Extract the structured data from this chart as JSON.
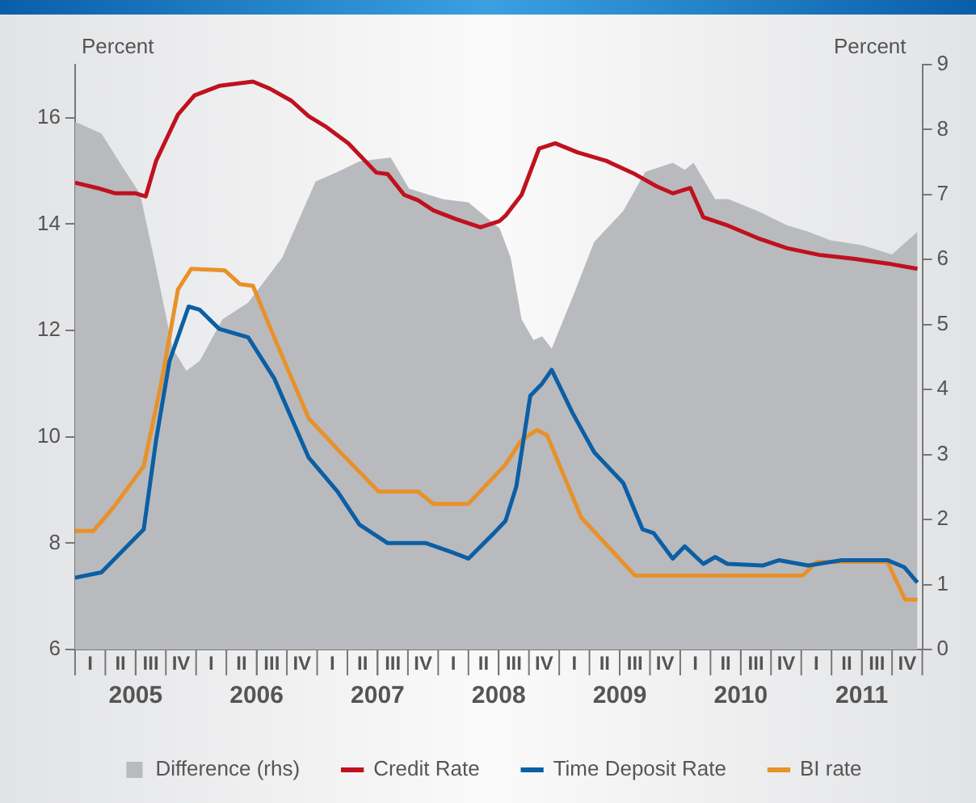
{
  "chart_data": {
    "type": "line",
    "ylabel": "Percent",
    "y2label": "Percent",
    "xlim": [
      "2005-01-01",
      "2012-01-01"
    ],
    "ylim": [
      6,
      17
    ],
    "yticks": [
      6,
      8,
      10,
      12,
      14,
      16
    ],
    "y2lim": [
      0,
      9
    ],
    "y2ticks": [
      0,
      1,
      2,
      3,
      4,
      5,
      6,
      7,
      8,
      9
    ],
    "xticks": [
      {
        "value": "2005-07-01",
        "label": "2005"
      },
      {
        "value": "2006-07-01",
        "label": "2006"
      },
      {
        "value": "2007-07-01",
        "label": "2007"
      },
      {
        "value": "2008-07-01",
        "label": "2008"
      },
      {
        "value": "2009-07-01",
        "label": "2009"
      },
      {
        "value": "2010-07-01",
        "label": "2010"
      },
      {
        "value": "2011-07-01",
        "label": "2011"
      }
    ],
    "annotations": [
      "I",
      "II",
      "III",
      "IV",
      "I",
      "II",
      "III",
      "IV",
      "I",
      "II",
      "III",
      "IV",
      "I",
      "II",
      "III",
      "IV",
      "I",
      "II",
      "III",
      "IV",
      "I",
      "II",
      "III",
      "IV",
      "I",
      "II",
      "III",
      "IV"
    ],
    "grid": false,
    "legend": "bottom",
    "series": [
      {
        "name": "Difference (rhs)",
        "type": "area",
        "axis": "y2",
        "color": "#b9babd",
        "x": [
          "2005-01-01",
          "2005-03-20",
          "2005-05-25",
          "2005-07-15",
          "2005-09-02",
          "2005-10-22",
          "2005-12-02",
          "2006-01-12",
          "2006-03-20",
          "2006-06-06",
          "2006-09-17",
          "2006-12-27",
          "2007-03-02",
          "2007-05-07",
          "2007-08-10",
          "2007-10-05",
          "2008-01-15",
          "2008-04-01",
          "2008-07-04",
          "2008-08-07",
          "2008-09-09",
          "2008-10-15",
          "2008-11-10",
          "2008-12-09",
          "2009-02-10",
          "2009-04-15",
          "2009-07-12",
          "2009-09-17",
          "2009-12-09",
          "2010-01-15",
          "2010-02-10",
          "2010-04-15",
          "2010-05-25",
          "2010-08-21",
          "2010-11-18",
          "2011-01-22",
          "2011-03-27",
          "2011-07-04",
          "2011-10-01",
          "2011-12-17"
        ],
        "values": [
          8.12,
          7.94,
          7.41,
          7.01,
          5.87,
          4.63,
          4.29,
          4.44,
          5.08,
          5.34,
          6.03,
          7.2,
          7.35,
          7.51,
          7.57,
          7.09,
          6.93,
          6.88,
          6.48,
          6.03,
          5.08,
          4.76,
          4.82,
          4.63,
          5.42,
          6.27,
          6.75,
          7.35,
          7.49,
          7.38,
          7.49,
          6.93,
          6.93,
          6.75,
          6.53,
          6.43,
          6.3,
          6.22,
          6.08,
          6.43
        ]
      },
      {
        "name": "Credit Rate",
        "type": "line",
        "color": "#c0111f",
        "x": [
          "2005-01-01",
          "2005-03-07",
          "2005-05-01",
          "2005-07-01",
          "2005-08-01",
          "2005-09-02",
          "2005-10-01",
          "2005-11-07",
          "2005-12-27",
          "2006-03-10",
          "2006-06-20",
          "2006-08-10",
          "2006-10-15",
          "2006-12-06",
          "2007-01-26",
          "2007-04-04",
          "2007-06-27",
          "2007-08-01",
          "2007-09-20",
          "2007-11-01",
          "2007-12-17",
          "2008-02-21",
          "2008-05-07",
          "2008-07-04",
          "2008-07-22",
          "2008-09-09",
          "2008-11-01",
          "2008-12-20",
          "2009-02-24",
          "2009-05-22",
          "2009-08-17",
          "2009-10-22",
          "2009-12-09",
          "2010-02-01",
          "2010-03-10",
          "2010-05-25",
          "2010-08-21",
          "2010-11-18",
          "2011-02-24",
          "2011-06-06",
          "2011-09-17",
          "2011-12-17"
        ],
        "values": [
          14.78,
          14.68,
          14.58,
          14.58,
          14.52,
          15.19,
          15.58,
          16.06,
          16.42,
          16.6,
          16.68,
          16.55,
          16.32,
          16.03,
          15.84,
          15.52,
          14.97,
          14.94,
          14.55,
          14.45,
          14.26,
          14.1,
          13.94,
          14.06,
          14.16,
          14.55,
          15.42,
          15.52,
          15.35,
          15.19,
          14.94,
          14.71,
          14.58,
          14.68,
          14.13,
          13.97,
          13.74,
          13.55,
          13.42,
          13.35,
          13.26,
          13.16
        ]
      },
      {
        "name": "Time Deposit Rate",
        "type": "line",
        "color": "#0b5fa5",
        "x": [
          "2005-01-01",
          "2005-03-20",
          "2005-05-25",
          "2005-07-26",
          "2005-09-02",
          "2005-10-12",
          "2005-12-09",
          "2006-01-12",
          "2006-03-10",
          "2006-06-06",
          "2006-08-24",
          "2006-12-06",
          "2007-03-02",
          "2007-05-07",
          "2007-08-01",
          "2007-11-25",
          "2008-02-07",
          "2008-04-01",
          "2008-06-17",
          "2008-07-22",
          "2008-08-24",
          "2008-10-05",
          "2008-11-10",
          "2008-12-09",
          "2009-02-10",
          "2009-04-15",
          "2009-07-12",
          "2009-09-09",
          "2009-10-12",
          "2009-12-09",
          "2010-01-15",
          "2010-03-10",
          "2010-04-15",
          "2010-05-22",
          "2010-09-06",
          "2010-10-26",
          "2011-01-22",
          "2011-05-01",
          "2011-09-17",
          "2011-11-07",
          "2011-12-17"
        ],
        "values": [
          7.35,
          7.45,
          7.87,
          8.26,
          9.94,
          11.42,
          12.45,
          12.39,
          12.03,
          11.87,
          11.1,
          9.61,
          8.97,
          8.35,
          8.0,
          8.0,
          7.84,
          7.71,
          8.19,
          8.42,
          9.06,
          10.77,
          11.0,
          11.26,
          10.45,
          9.71,
          9.13,
          8.26,
          8.19,
          7.71,
          7.94,
          7.61,
          7.74,
          7.61,
          7.58,
          7.68,
          7.58,
          7.68,
          7.68,
          7.55,
          7.26
        ]
      },
      {
        "name": "BI rate",
        "type": "line",
        "color": "#e8912b",
        "x": [
          "2005-01-01",
          "2005-02-24",
          "2005-04-26",
          "2005-07-26",
          "2005-09-17",
          "2005-11-07",
          "2005-12-17",
          "2006-03-27",
          "2006-05-12",
          "2006-06-20",
          "2006-08-24",
          "2006-12-06",
          "2007-03-10",
          "2007-07-04",
          "2007-11-01",
          "2007-12-17",
          "2008-04-01",
          "2008-07-22",
          "2008-09-09",
          "2008-10-26",
          "2008-11-25",
          "2009-03-07",
          "2009-08-17",
          "2011-01-05",
          "2011-02-17",
          "2011-09-17",
          "2011-11-10",
          "2011-12-17"
        ],
        "values": [
          8.23,
          8.23,
          8.68,
          9.45,
          11.0,
          12.77,
          13.16,
          13.13,
          12.87,
          12.84,
          11.87,
          10.35,
          9.71,
          8.97,
          8.97,
          8.74,
          8.74,
          9.48,
          9.94,
          10.13,
          10.03,
          8.48,
          7.39,
          7.39,
          7.65,
          7.65,
          6.94,
          6.94
        ]
      }
    ]
  }
}
